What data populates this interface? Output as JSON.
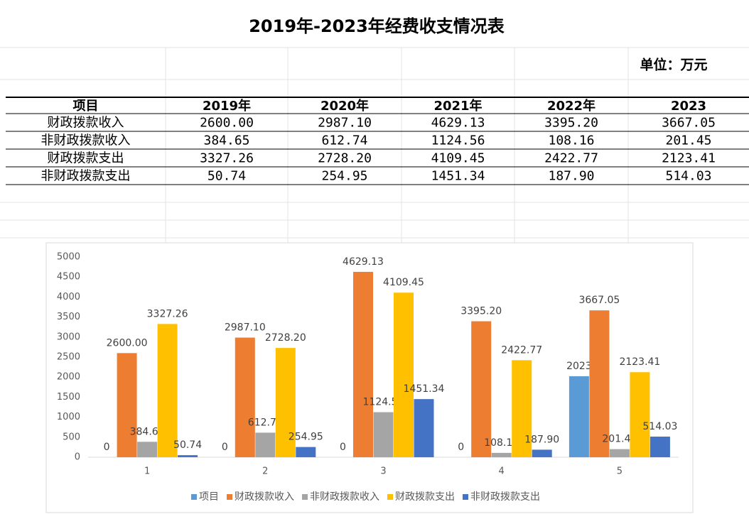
{
  "title": "2019年-2023年经费收支情况表",
  "unit": "单位：万元",
  "table": {
    "header": [
      "项目",
      "2019年",
      "2020年",
      "2021年",
      "2022年",
      "2023"
    ],
    "rows": [
      [
        "财政拨款收入",
        "2600.00",
        "2987.10",
        "4629.13",
        "3395.20",
        "3667.05"
      ],
      [
        "非财政拨款收入",
        "384.65",
        "612.74",
        "1124.56",
        "108.16",
        "201.45"
      ],
      [
        "财政拨款支出",
        "3327.26",
        "2728.20",
        "4109.45",
        "2422.77",
        "2123.41"
      ],
      [
        "非财政拨款支出",
        "50.74",
        "254.95",
        "1451.34",
        "187.90",
        "514.03"
      ]
    ]
  },
  "chart_data": {
    "type": "bar",
    "categories": [
      "1",
      "2",
      "3",
      "4",
      "5"
    ],
    "series": [
      {
        "name": "项目",
        "color": "#5b9bd5",
        "values": [
          0,
          0,
          0,
          0,
          2023
        ]
      },
      {
        "name": "财政拨款收入",
        "color": "#ed7d31",
        "values": [
          2600,
          2987.1,
          4629.13,
          3395.2,
          3667.05
        ],
        "value_labels": [
          "2600.00",
          "2987.10",
          "4629.13",
          "3395.20",
          "3667.05"
        ]
      },
      {
        "name": "非财政拨款收入",
        "color": "#a5a5a5",
        "values": [
          384.65,
          612.74,
          1124.56,
          108.16,
          201.45
        ]
      },
      {
        "name": "财政拨款支出",
        "color": "#ffc000",
        "values": [
          3327.26,
          2728.2,
          4109.45,
          2422.77,
          2123.41
        ],
        "value_labels": [
          "3327.26",
          "2728.20",
          "4109.45",
          "2422.77",
          "2123.41"
        ]
      },
      {
        "name": "非财政拨款支出",
        "color": "#4472c4",
        "values": [
          50.74,
          254.95,
          1451.34,
          187.9,
          514.03
        ],
        "value_labels": [
          "50.74",
          "254.95",
          "1451.34",
          "187.90",
          "514.03"
        ]
      }
    ],
    "ylim": [
      0,
      5000
    ],
    "yticks": [
      0,
      500,
      1000,
      1500,
      2000,
      2500,
      3000,
      3500,
      4000,
      4500,
      5000
    ],
    "legend": "bottom"
  }
}
